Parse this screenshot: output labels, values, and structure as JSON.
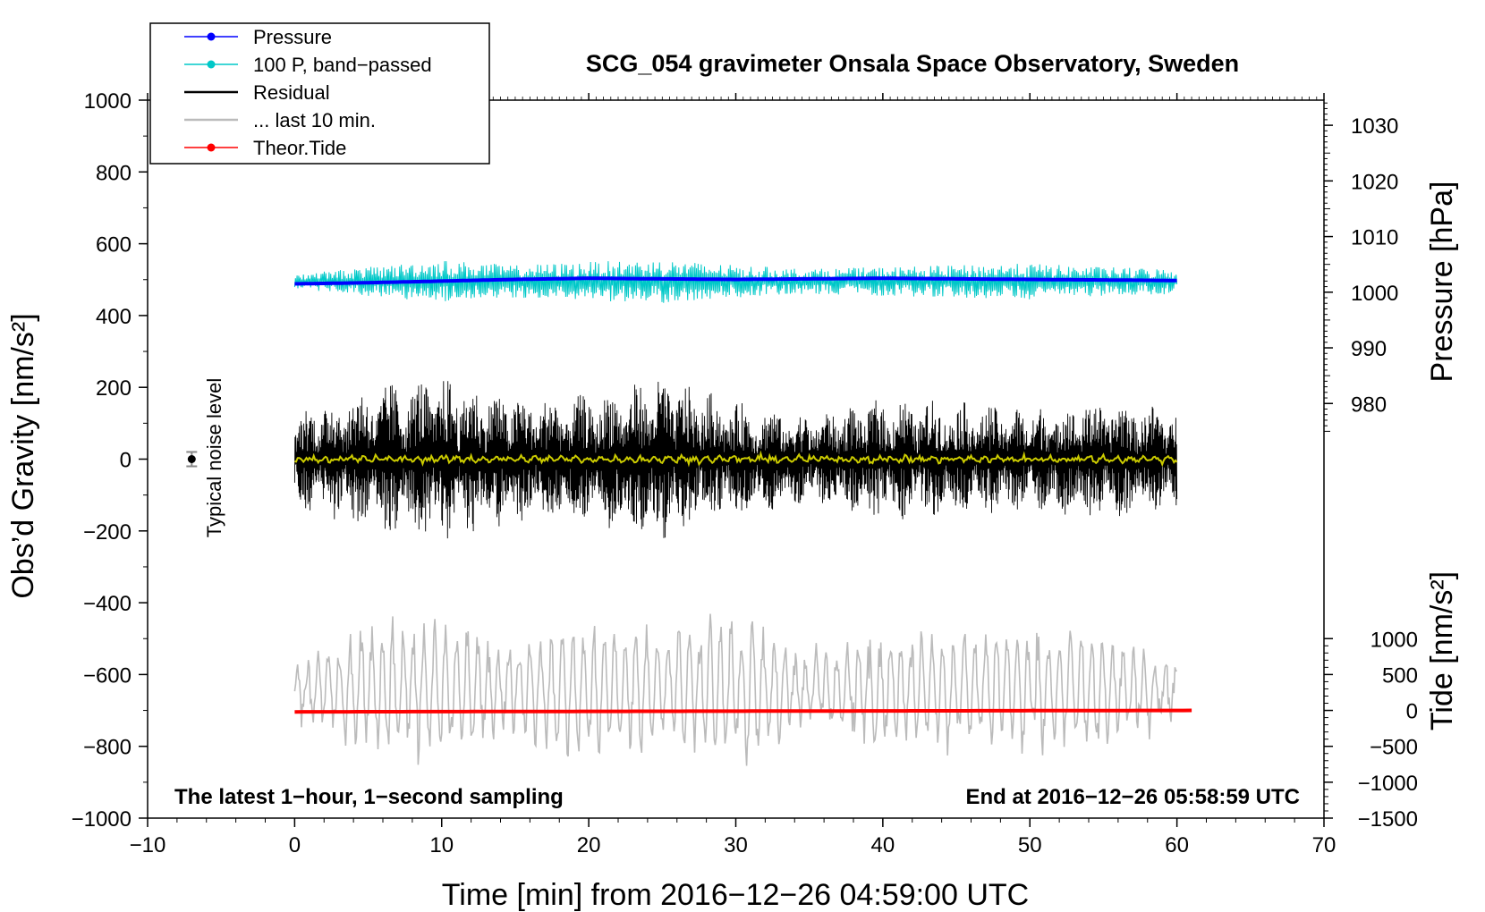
{
  "chart_data": {
    "type": "line",
    "title": "SCG_054 gravimeter Onsala Space Observatory, Sweden",
    "xlabel": "Time [min] from 2016−12−26 04:59:00 UTC",
    "ylabel_left": "Obs’d Gravity [nm/s²]",
    "ylabel_right_top": "Pressure [hPa]",
    "ylabel_right_bottom": "Tide [nm/s²]",
    "xlim": [
      -10,
      70
    ],
    "ylim": [
      -1000,
      1000
    ],
    "xticks": [
      "−10",
      "0",
      "10",
      "20",
      "30",
      "40",
      "50",
      "60",
      "70"
    ],
    "xtick_values": [
      -10,
      0,
      10,
      20,
      30,
      40,
      50,
      60,
      70
    ],
    "yticks_left": [
      "1000",
      "800",
      "600",
      "400",
      "200",
      "0",
      "−200",
      "−400",
      "−600",
      "−800",
      "−1000"
    ],
    "ytick_left_values": [
      1000,
      800,
      600,
      400,
      200,
      0,
      -200,
      -400,
      -600,
      -800,
      -1000
    ],
    "pressure_axis": {
      "ticks": [
        "1030",
        "1020",
        "1010",
        "1000",
        "990",
        "980"
      ],
      "values": [
        1030,
        1020,
        1010,
        1000,
        990,
        980
      ],
      "map": {
        "value_at_gravity_0": 970,
        "gravity_per_hPa": 15.5
      }
    },
    "tide_axis": {
      "ticks": [
        "1000",
        "500",
        "0",
        "−500",
        "−1000",
        "−1500"
      ],
      "values": [
        1000,
        500,
        0,
        -500,
        -1000,
        -1500
      ],
      "map": {
        "value_at_gravity_minus1000": -1500,
        "gravity_per_nms2": 0.2
      }
    },
    "legend": [
      {
        "label": "Pressure",
        "color": "#0000ff",
        "marker": true
      },
      {
        "label": "100 P, band−passed",
        "color": "#00c8c8",
        "marker": true
      },
      {
        "label": "Residual",
        "color": "#000000",
        "marker": false
      },
      {
        "label": "... last 10 min.",
        "color": "#bbbbbb",
        "marker": false
      },
      {
        "label": "Theor.Tide",
        "color": "#ff0000",
        "marker": true
      }
    ],
    "annotations": {
      "bottom_left": "The latest 1−hour, 1−second sampling",
      "bottom_right": "End at 2016−12−26 05:58:59 UTC",
      "noise_label": "Typical noise level"
    },
    "noise_level": {
      "x": -7,
      "y": 0,
      "err": 20
    },
    "series": [
      {
        "name": "Pressure",
        "color": "#0000ff",
        "x_range": [
          0,
          60
        ],
        "approx_hPa": [
          1001.5,
          1001.7,
          1002.0,
          1002.3,
          1002.5,
          1002.4,
          1002.3,
          1002.4,
          1002.5,
          1002.4,
          1002.3,
          1002.2,
          1002.1
        ]
      },
      {
        "name": "100 P, band−passed",
        "color": "#00c8c8",
        "x_range": [
          0,
          60
        ],
        "baseline_gravity": 495,
        "approx_amplitude": [
          20,
          40,
          60,
          45,
          55,
          60,
          45,
          35,
          40,
          45,
          50,
          40,
          35
        ]
      },
      {
        "name": "Residual",
        "color": "#000000",
        "x_range": [
          0,
          60
        ],
        "approx_amplitude": [
          150,
          230,
          260,
          200,
          200,
          260,
          180,
          140,
          190,
          180,
          160,
          190,
          160
        ]
      },
      {
        "name": "Residual (smoothed)",
        "color": "#cccc00",
        "x_range": [
          0,
          60
        ],
        "approx_value": 0
      },
      {
        "name": "... last 10 min.",
        "color": "#bbbbbb",
        "x_range": [
          0,
          60
        ],
        "baseline_gravity": -640,
        "approx_amplitude": [
          60,
          160,
          170,
          120,
          170,
          150,
          200,
          90,
          150,
          150,
          160,
          140,
          60
        ]
      },
      {
        "name": "Theor.Tide",
        "color": "#ff0000",
        "x_range": [
          0,
          61
        ],
        "approx_tide_nms2": [
          -20,
          0
        ]
      }
    ]
  }
}
